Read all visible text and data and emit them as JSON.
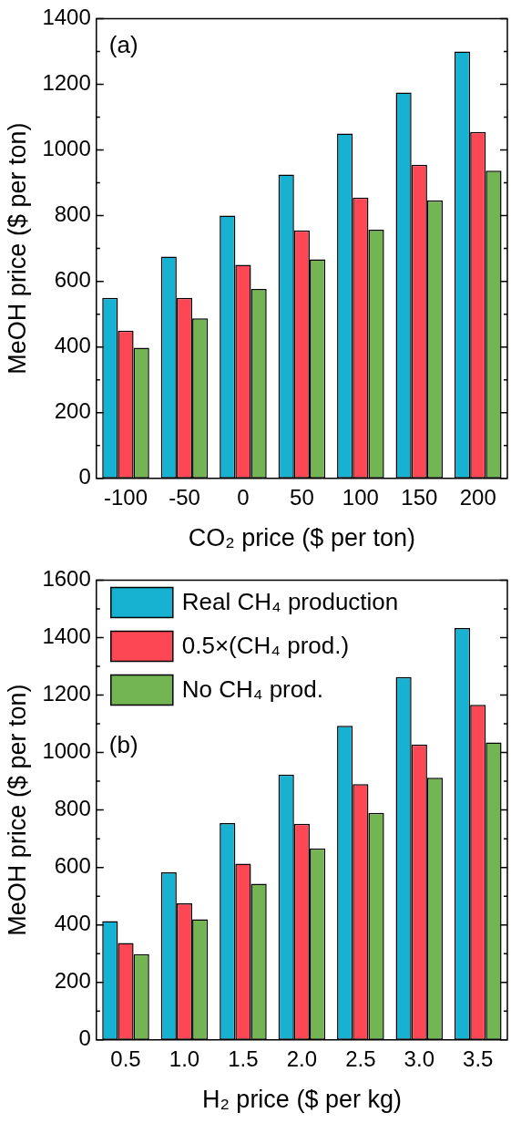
{
  "chart_data": [
    {
      "type": "bar",
      "xlabel": "CO₂ price ($ per ton)",
      "ylabel": "MeOH price ($ per ton)",
      "annotations": [
        "(a)"
      ],
      "categories": [
        "-100",
        "-50",
        "0",
        "50",
        "100",
        "150",
        "200"
      ],
      "ylim": [
        0,
        1400
      ],
      "yticks": [
        0,
        {
          "value": 100,
          "label": null
        },
        200,
        {
          "value": 300,
          "label": null
        },
        400,
        {
          "value": 500,
          "label": null
        },
        600,
        {
          "value": 700,
          "label": null
        },
        800,
        {
          "value": 900,
          "label": null
        },
        1000,
        {
          "value": 1100,
          "label": null
        },
        1200,
        {
          "value": 1300,
          "label": null
        },
        1400
      ],
      "legend": false,
      "grid": false,
      "series": [
        {
          "color": "#17b1d1",
          "values": [
            550,
            675,
            800,
            925,
            1050,
            1175,
            1300
          ]
        },
        {
          "color": "#fe4755",
          "values": [
            450,
            550,
            650,
            755,
            855,
            955,
            1055
          ]
        },
        {
          "color": "#74b553",
          "values": [
            398,
            487,
            577,
            667,
            757,
            847,
            937
          ]
        }
      ]
    },
    {
      "type": "bar",
      "xlabel": "H₂ price ($ per kg)",
      "ylabel": "MeOH price ($ per ton)",
      "annotations": [
        "(b)"
      ],
      "categories": [
        "0.5",
        "1.0",
        "1.5",
        "2.0",
        "2.5",
        "3.0",
        "3.5"
      ],
      "ylim": [
        0,
        1600
      ],
      "yticks": [
        0,
        {
          "value": 100,
          "label": null
        },
        200,
        {
          "value": 300,
          "label": null
        },
        400,
        {
          "value": 500,
          "label": null
        },
        600,
        {
          "value": 700,
          "label": null
        },
        800,
        {
          "value": 900,
          "label": null
        },
        1000,
        {
          "value": 1100,
          "label": null
        },
        1200,
        {
          "value": 1300,
          "label": null
        },
        1400,
        {
          "value": 1500,
          "label": null
        },
        1600
      ],
      "legend": "top left",
      "grid": false,
      "series": [
        {
          "name": "Real CH₄ production",
          "color": "#17b1d1",
          "values": [
            413,
            583,
            754,
            923,
            1093,
            1263,
            1433
          ]
        },
        {
          "name": "0.5×(CH₄ prod.)",
          "color": "#fe4755",
          "values": [
            337,
            475,
            613,
            752,
            890,
            1028,
            1166
          ]
        },
        {
          "name": "No CH₄ prod.",
          "color": "#74b553",
          "values": [
            298,
            420,
            543,
            666,
            790,
            912,
            1035
          ]
        }
      ]
    }
  ]
}
